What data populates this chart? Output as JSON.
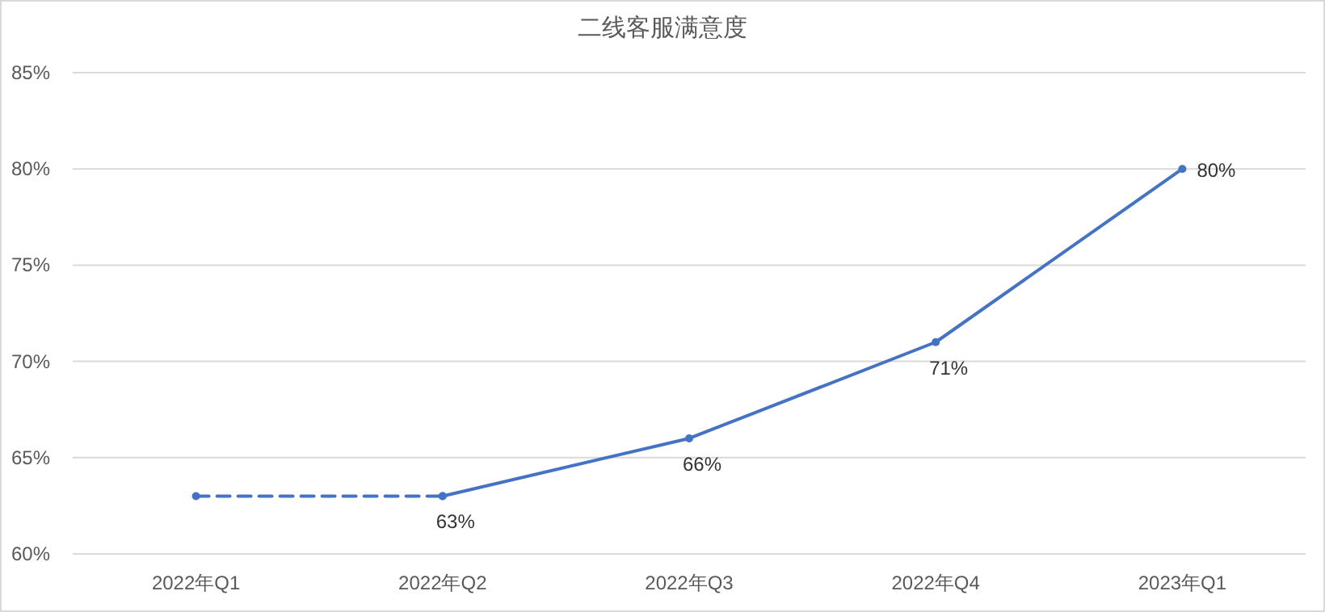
{
  "chart_data": {
    "type": "line",
    "title": "二线客服满意度",
    "categories": [
      "2022年Q1",
      "2022年Q2",
      "2022年Q3",
      "2022年Q4",
      "2023年Q1"
    ],
    "series": [
      {
        "color": "#4472c4",
        "line_style": "dashed",
        "values": [
          63,
          63,
          null,
          null,
          null
        ]
      },
      {
        "color": "#4472c4",
        "line_style": "solid",
        "values": [
          null,
          63,
          66,
          71,
          80
        ],
        "value_labels": [
          null,
          "63%",
          "66%",
          "71%",
          "80%"
        ]
      }
    ],
    "ylim": [
      60,
      85
    ],
    "yticks": [
      {
        "value": 60,
        "label": "60%"
      },
      {
        "value": 65,
        "label": "65%"
      },
      {
        "value": 70,
        "label": "70%"
      },
      {
        "value": 75,
        "label": "75%"
      },
      {
        "value": 80,
        "label": "80%"
      },
      {
        "value": 85,
        "label": "85%"
      }
    ],
    "grid": "y",
    "marker": "circle"
  }
}
